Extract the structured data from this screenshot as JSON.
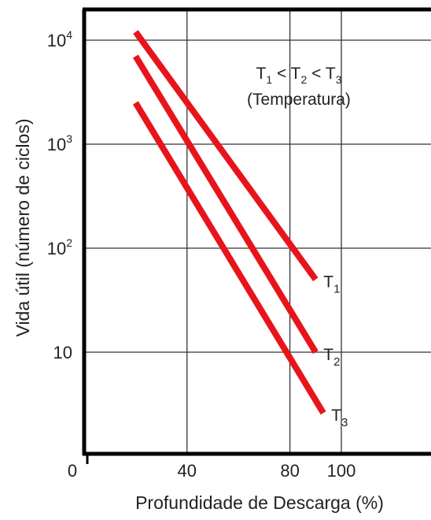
{
  "chart_data": {
    "type": "line",
    "xlabel": "Profundidade de Descarga (%)",
    "ylabel": "Vida útil (número de ciclos)",
    "x_tick_labels": [
      "0",
      "40",
      "80",
      "100"
    ],
    "x_ticks": [
      0,
      40,
      80,
      100
    ],
    "y_tick_labels": [
      {
        "base": "10",
        "exp": "4"
      },
      {
        "base": "10",
        "exp": "3"
      },
      {
        "base": "10",
        "exp": "2"
      },
      {
        "base": "10",
        "exp": ""
      }
    ],
    "y_ticks": [
      10000,
      1000,
      100,
      10
    ],
    "x_scale": "linear",
    "y_scale": "log",
    "xlim": [
      0,
      110
    ],
    "ylim": [
      0.6,
      40000
    ],
    "grid": true,
    "annotation": {
      "line1": [
        {
          "t": "T"
        },
        {
          "sub": "1"
        },
        {
          "t": " < T"
        },
        {
          "sub": "2"
        },
        {
          "t": " < T"
        },
        {
          "sub": "3"
        }
      ],
      "line2": "(Temperatura)"
    },
    "series_color": "#e8141c",
    "series": [
      {
        "label": {
          "base": "T",
          "sub": "1"
        },
        "x": [
          20,
          90
        ],
        "y": [
          12000,
          50
        ]
      },
      {
        "label": {
          "base": "T",
          "sub": "2"
        },
        "x": [
          20,
          90
        ],
        "y": [
          7000,
          10
        ]
      },
      {
        "label": {
          "base": "T",
          "sub": "3"
        },
        "x": [
          20,
          93
        ],
        "y": [
          2500,
          2.6
        ]
      }
    ]
  }
}
